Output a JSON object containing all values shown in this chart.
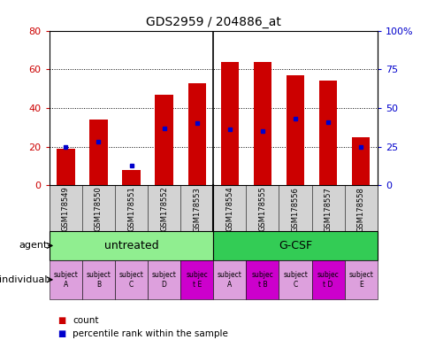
{
  "title": "GDS2959 / 204886_at",
  "samples": [
    "GSM178549",
    "GSM178550",
    "GSM178551",
    "GSM178552",
    "GSM178553",
    "GSM178554",
    "GSM178555",
    "GSM178556",
    "GSM178557",
    "GSM178558"
  ],
  "count_values": [
    19,
    34,
    8,
    47,
    53,
    64,
    64,
    57,
    54,
    25
  ],
  "percentile_values": [
    25,
    28,
    13,
    37,
    40,
    36,
    35,
    43,
    41,
    25
  ],
  "bar_color": "#cc0000",
  "dot_color": "#0000cc",
  "left_ylim": [
    0,
    80
  ],
  "right_ylim": [
    0,
    100
  ],
  "left_yticks": [
    0,
    20,
    40,
    60,
    80
  ],
  "right_yticks": [
    0,
    25,
    50,
    75,
    100
  ],
  "right_yticklabels": [
    "0",
    "25",
    "50",
    "75",
    "100%"
  ],
  "groups": [
    {
      "label": "untreated",
      "start": 0,
      "end": 4,
      "color": "#90ee90"
    },
    {
      "label": "G-CSF",
      "start": 5,
      "end": 9,
      "color": "#33cc55"
    }
  ],
  "individuals": [
    {
      "label": "subject\nA",
      "highlight": false
    },
    {
      "label": "subject\nB",
      "highlight": false
    },
    {
      "label": "subject\nC",
      "highlight": false
    },
    {
      "label": "subject\nD",
      "highlight": false
    },
    {
      "label": "subjec\nt E",
      "highlight": true
    },
    {
      "label": "subject\nA",
      "highlight": false
    },
    {
      "label": "subjec\nt B",
      "highlight": true
    },
    {
      "label": "subject\nC",
      "highlight": false
    },
    {
      "label": "subjec\nt D",
      "highlight": true
    },
    {
      "label": "subject\nE",
      "highlight": false
    }
  ],
  "individual_normal_color": "#dda0dd",
  "individual_highlight_color": "#cc00cc",
  "xtick_bg_color": "#d3d3d3",
  "agent_label": "agent",
  "individual_label": "individual",
  "legend_count_color": "#cc0000",
  "legend_dot_color": "#0000cc",
  "legend_count_text": "count",
  "legend_percentile_text": "percentile rank within the sample",
  "background_color": "#ffffff",
  "bar_width": 0.55,
  "figsize": [
    4.85,
    3.84
  ],
  "dpi": 100
}
